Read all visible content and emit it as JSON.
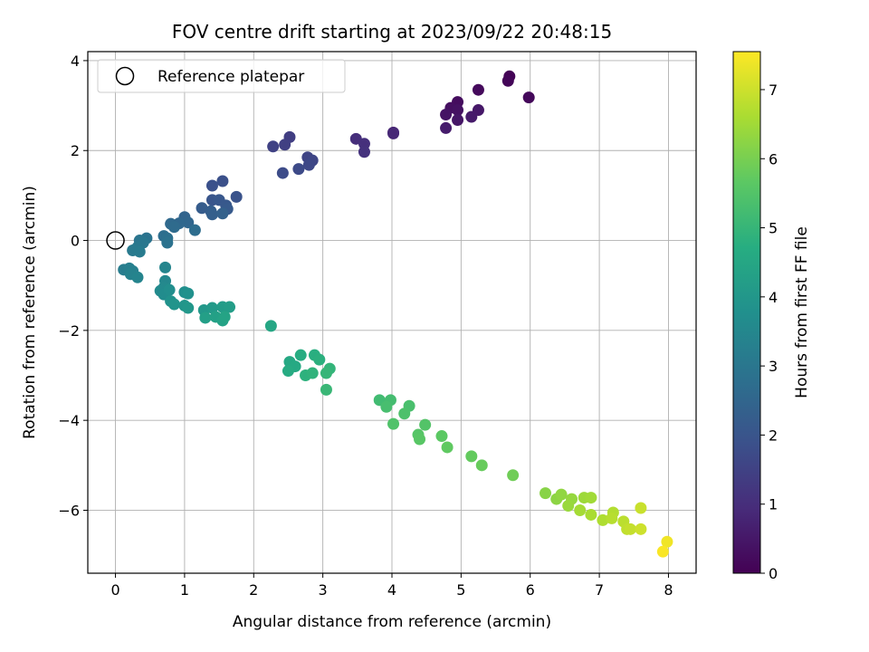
{
  "chart_data": {
    "type": "scatter",
    "title": "FOV centre drift starting at 2023/09/22 20:48:15",
    "xlabel": "Angular distance from reference (arcmin)",
    "ylabel": "Rotation from reference (arcmin)",
    "xlim": [
      -0.4,
      8.4
    ],
    "ylim": [
      -7.4,
      4.2
    ],
    "xticks": [
      0,
      1,
      2,
      3,
      4,
      5,
      6,
      7,
      8
    ],
    "yticks": [
      -6,
      -4,
      -2,
      0,
      2,
      4
    ],
    "grid": true,
    "legend": {
      "placement": "top-left",
      "entries": [
        "Reference platepar"
      ]
    },
    "reference_point": {
      "x": 0,
      "y": 0
    },
    "colorbar": {
      "label": "Hours from first FF file",
      "range": [
        0,
        7.55
      ],
      "ticks": [
        0,
        1,
        2,
        3,
        4,
        5,
        6,
        7
      ],
      "colormap": "viridis"
    },
    "points": [
      {
        "x": 5.7,
        "y": 3.65,
        "h": 0.05
      },
      {
        "x": 5.68,
        "y": 3.55,
        "h": 0.1
      },
      {
        "x": 5.98,
        "y": 3.18,
        "h": 0.15
      },
      {
        "x": 5.25,
        "y": 3.35,
        "h": 0.2
      },
      {
        "x": 4.95,
        "y": 3.08,
        "h": 0.25
      },
      {
        "x": 4.85,
        "y": 2.95,
        "h": 0.3
      },
      {
        "x": 4.95,
        "y": 2.9,
        "h": 0.35
      },
      {
        "x": 4.78,
        "y": 2.8,
        "h": 0.4
      },
      {
        "x": 4.95,
        "y": 2.68,
        "h": 0.45
      },
      {
        "x": 5.25,
        "y": 2.9,
        "h": 0.5
      },
      {
        "x": 5.15,
        "y": 2.75,
        "h": 0.55
      },
      {
        "x": 4.78,
        "y": 2.5,
        "h": 0.6
      },
      {
        "x": 4.02,
        "y": 2.4,
        "h": 0.8
      },
      {
        "x": 4.02,
        "y": 2.38,
        "h": 0.85
      },
      {
        "x": 3.48,
        "y": 2.26,
        "h": 1.0
      },
      {
        "x": 3.6,
        "y": 2.15,
        "h": 1.05
      },
      {
        "x": 3.6,
        "y": 1.97,
        "h": 1.1
      },
      {
        "x": 2.52,
        "y": 2.3,
        "h": 1.4
      },
      {
        "x": 2.45,
        "y": 2.13,
        "h": 1.45
      },
      {
        "x": 2.28,
        "y": 2.09,
        "h": 1.5
      },
      {
        "x": 2.78,
        "y": 1.85,
        "h": 1.55
      },
      {
        "x": 2.85,
        "y": 1.78,
        "h": 1.6
      },
      {
        "x": 2.8,
        "y": 1.68,
        "h": 1.65
      },
      {
        "x": 2.65,
        "y": 1.59,
        "h": 1.7
      },
      {
        "x": 2.42,
        "y": 1.5,
        "h": 1.75
      },
      {
        "x": 1.55,
        "y": 1.32,
        "h": 1.85
      },
      {
        "x": 1.4,
        "y": 1.22,
        "h": 1.9
      },
      {
        "x": 1.75,
        "y": 0.97,
        "h": 1.95
      },
      {
        "x": 1.4,
        "y": 0.9,
        "h": 2.0
      },
      {
        "x": 1.5,
        "y": 0.9,
        "h": 2.05
      },
      {
        "x": 1.6,
        "y": 0.78,
        "h": 2.1
      },
      {
        "x": 1.62,
        "y": 0.7,
        "h": 2.15
      },
      {
        "x": 1.25,
        "y": 0.72,
        "h": 2.2
      },
      {
        "x": 1.38,
        "y": 0.65,
        "h": 2.25
      },
      {
        "x": 1.4,
        "y": 0.58,
        "h": 2.3
      },
      {
        "x": 1.55,
        "y": 0.6,
        "h": 2.35
      },
      {
        "x": 1.0,
        "y": 0.52,
        "h": 2.45
      },
      {
        "x": 1.05,
        "y": 0.4,
        "h": 2.5
      },
      {
        "x": 0.92,
        "y": 0.38,
        "h": 2.55
      },
      {
        "x": 0.8,
        "y": 0.37,
        "h": 2.6
      },
      {
        "x": 0.85,
        "y": 0.3,
        "h": 2.65
      },
      {
        "x": 1.15,
        "y": 0.23,
        "h": 2.7
      },
      {
        "x": 0.7,
        "y": 0.1,
        "h": 2.75
      },
      {
        "x": 0.75,
        "y": 0.05,
        "h": 2.8
      },
      {
        "x": 0.75,
        "y": -0.05,
        "h": 2.85
      },
      {
        "x": 0.45,
        "y": 0.05,
        "h": 2.9
      },
      {
        "x": 0.35,
        "y": 0.0,
        "h": 2.95
      },
      {
        "x": 0.4,
        "y": -0.05,
        "h": 3.0
      },
      {
        "x": 0.32,
        "y": -0.15,
        "h": 3.05
      },
      {
        "x": 0.25,
        "y": -0.22,
        "h": 3.1
      },
      {
        "x": 0.35,
        "y": -0.25,
        "h": 3.15
      },
      {
        "x": 0.12,
        "y": -0.65,
        "h": 3.2
      },
      {
        "x": 0.2,
        "y": -0.62,
        "h": 3.25
      },
      {
        "x": 0.25,
        "y": -0.68,
        "h": 3.3
      },
      {
        "x": 0.22,
        "y": -0.75,
        "h": 3.35
      },
      {
        "x": 0.32,
        "y": -0.82,
        "h": 3.4
      },
      {
        "x": 0.72,
        "y": -0.6,
        "h": 3.45
      },
      {
        "x": 0.72,
        "y": -0.9,
        "h": 3.5
      },
      {
        "x": 0.7,
        "y": -1.05,
        "h": 3.55
      },
      {
        "x": 0.65,
        "y": -1.12,
        "h": 3.6
      },
      {
        "x": 0.7,
        "y": -1.2,
        "h": 3.65
      },
      {
        "x": 0.78,
        "y": -1.1,
        "h": 3.7
      },
      {
        "x": 1.0,
        "y": -1.15,
        "h": 3.75
      },
      {
        "x": 1.05,
        "y": -1.18,
        "h": 3.8
      },
      {
        "x": 0.8,
        "y": -1.35,
        "h": 3.85
      },
      {
        "x": 0.85,
        "y": -1.42,
        "h": 3.9
      },
      {
        "x": 1.0,
        "y": -1.45,
        "h": 3.95
      },
      {
        "x": 1.05,
        "y": -1.5,
        "h": 4.0
      },
      {
        "x": 1.28,
        "y": -1.55,
        "h": 4.05
      },
      {
        "x": 1.4,
        "y": -1.5,
        "h": 4.1
      },
      {
        "x": 1.55,
        "y": -1.48,
        "h": 4.15
      },
      {
        "x": 1.65,
        "y": -1.48,
        "h": 4.2
      },
      {
        "x": 1.3,
        "y": -1.72,
        "h": 4.25
      },
      {
        "x": 1.45,
        "y": -1.7,
        "h": 4.3
      },
      {
        "x": 1.55,
        "y": -1.78,
        "h": 4.35
      },
      {
        "x": 1.58,
        "y": -1.7,
        "h": 4.4
      },
      {
        "x": 2.25,
        "y": -1.9,
        "h": 4.5
      },
      {
        "x": 2.52,
        "y": -2.7,
        "h": 4.55
      },
      {
        "x": 2.6,
        "y": -2.8,
        "h": 4.6
      },
      {
        "x": 2.5,
        "y": -2.9,
        "h": 4.65
      },
      {
        "x": 2.68,
        "y": -2.55,
        "h": 4.7
      },
      {
        "x": 2.88,
        "y": -2.55,
        "h": 4.75
      },
      {
        "x": 2.95,
        "y": -2.65,
        "h": 4.8
      },
      {
        "x": 2.75,
        "y": -3.0,
        "h": 4.85
      },
      {
        "x": 2.85,
        "y": -2.95,
        "h": 4.9
      },
      {
        "x": 3.1,
        "y": -2.85,
        "h": 4.95
      },
      {
        "x": 3.05,
        "y": -2.95,
        "h": 5.0
      },
      {
        "x": 3.05,
        "y": -3.32,
        "h": 5.05
      },
      {
        "x": 3.82,
        "y": -3.55,
        "h": 5.2
      },
      {
        "x": 3.98,
        "y": -3.55,
        "h": 5.25
      },
      {
        "x": 3.92,
        "y": -3.7,
        "h": 5.3
      },
      {
        "x": 4.25,
        "y": -3.68,
        "h": 5.35
      },
      {
        "x": 4.18,
        "y": -3.85,
        "h": 5.4
      },
      {
        "x": 4.02,
        "y": -4.08,
        "h": 5.45
      },
      {
        "x": 4.48,
        "y": -4.1,
        "h": 5.5
      },
      {
        "x": 4.38,
        "y": -4.32,
        "h": 5.55
      },
      {
        "x": 4.4,
        "y": -4.42,
        "h": 5.6
      },
      {
        "x": 4.72,
        "y": -4.35,
        "h": 5.65
      },
      {
        "x": 4.8,
        "y": -4.6,
        "h": 5.7
      },
      {
        "x": 5.15,
        "y": -4.8,
        "h": 5.75
      },
      {
        "x": 5.3,
        "y": -5.0,
        "h": 5.8
      },
      {
        "x": 5.75,
        "y": -5.22,
        "h": 5.9
      },
      {
        "x": 6.22,
        "y": -5.62,
        "h": 6.2
      },
      {
        "x": 6.38,
        "y": -5.75,
        "h": 6.25
      },
      {
        "x": 6.45,
        "y": -5.65,
        "h": 6.3
      },
      {
        "x": 6.6,
        "y": -5.75,
        "h": 6.35
      },
      {
        "x": 6.55,
        "y": -5.9,
        "h": 6.4
      },
      {
        "x": 6.78,
        "y": -5.72,
        "h": 6.45
      },
      {
        "x": 6.88,
        "y": -5.72,
        "h": 6.5
      },
      {
        "x": 6.72,
        "y": -6.0,
        "h": 6.55
      },
      {
        "x": 6.88,
        "y": -6.1,
        "h": 6.6
      },
      {
        "x": 7.05,
        "y": -6.22,
        "h": 6.65
      },
      {
        "x": 7.2,
        "y": -6.05,
        "h": 6.7
      },
      {
        "x": 7.18,
        "y": -6.18,
        "h": 6.75
      },
      {
        "x": 7.35,
        "y": -6.25,
        "h": 6.8
      },
      {
        "x": 7.4,
        "y": -6.42,
        "h": 6.85
      },
      {
        "x": 7.45,
        "y": -6.42,
        "h": 6.9
      },
      {
        "x": 7.6,
        "y": -5.95,
        "h": 6.95
      },
      {
        "x": 7.6,
        "y": -6.42,
        "h": 7.0
      },
      {
        "x": 7.98,
        "y": -6.7,
        "h": 7.4
      },
      {
        "x": 7.92,
        "y": -6.92,
        "h": 7.5
      }
    ]
  }
}
